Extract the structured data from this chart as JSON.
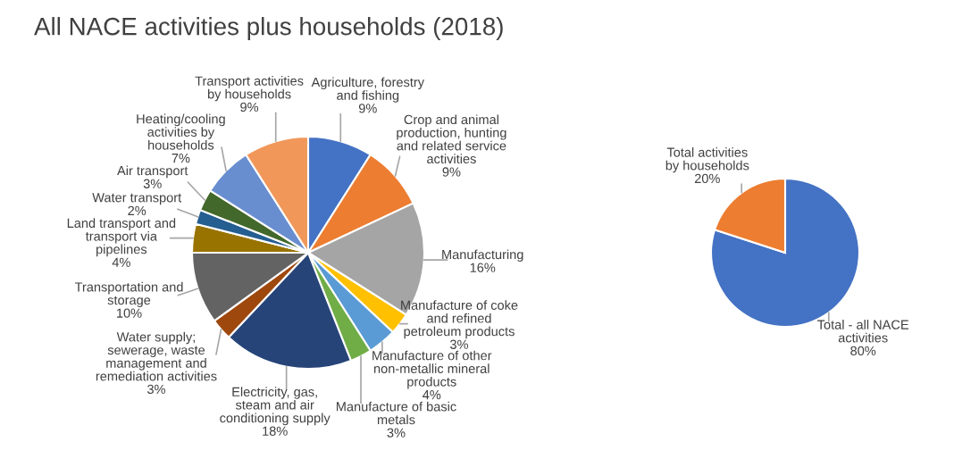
{
  "chart_data": [
    {
      "type": "pie",
      "title": "All NACE activities plus households (2018)",
      "categories": [
        "Agriculture, forestry\nand fishing",
        "Crop and animal\nproduction, hunting\nand related service\nactivities",
        "Manufacturing",
        "Manufacture of coke\nand refined\npetroleum products",
        "Manufacture of other\nnon-metallic mineral\nproducts",
        "Manufacture of basic\nmetals",
        "Electricity, gas,\nsteam and air\nconditioning supply",
        "Water supply;\nsewerage, waste\nmanagement and\nremediation activities",
        "Transportation and\nstorage",
        "Land transport and\ntransport via\npipelines",
        "Water transport",
        "Air transport",
        "Heating/cooling\nactivities by\nhouseholds",
        "Transport activities\nby households"
      ],
      "values": [
        9,
        9,
        16,
        3,
        4,
        3,
        18,
        3,
        10,
        4,
        2,
        3,
        7,
        9
      ],
      "value_labels": [
        "9%",
        "9%",
        "16%",
        "3%",
        "4%",
        "3%",
        "18%",
        "3%",
        "10%",
        "4%",
        "2%",
        "3%",
        "7%",
        "9%"
      ],
      "colors": [
        "#4472c4",
        "#ed7d31",
        "#a5a5a5",
        "#ffc000",
        "#5b9bd5",
        "#70ad47",
        "#264478",
        "#9e480e",
        "#636363",
        "#997300",
        "#255e91",
        "#43682b",
        "#698ed0",
        "#f1975a"
      ]
    },
    {
      "type": "pie",
      "categories": [
        "Total - all NACE\nactivities",
        "Total activities\nby households"
      ],
      "values": [
        80,
        20
      ],
      "value_labels": [
        "80%",
        "20%"
      ],
      "colors": [
        "#4472c4",
        "#ed7d31"
      ]
    }
  ]
}
